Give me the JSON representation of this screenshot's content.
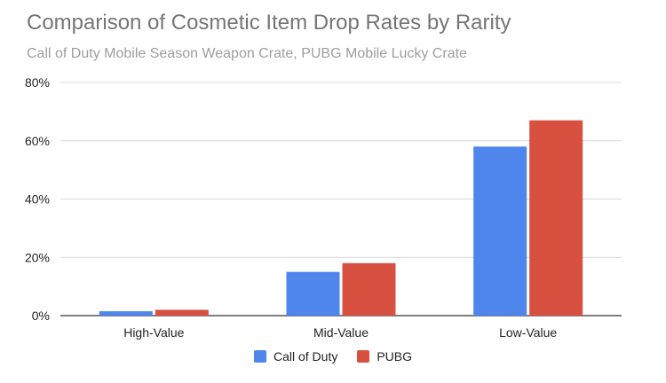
{
  "chart_data": {
    "type": "bar",
    "title": "Comparison of Cosmetic Item Drop Rates by Rarity",
    "subtitle": "Call of Duty Mobile Season Weapon Crate, PUBG Mobile Lucky Crate",
    "categories": [
      "High-Value",
      "Mid-Value",
      "Low-Value"
    ],
    "series": [
      {
        "name": "Call of Duty",
        "color": "#4F86EC",
        "values": [
          1.5,
          15,
          58
        ]
      },
      {
        "name": "PUBG",
        "color": "#D85040",
        "values": [
          2,
          18,
          67
        ]
      }
    ],
    "ylim": [
      0,
      80
    ],
    "yticks": [
      0,
      20,
      40,
      60,
      80
    ],
    "ytick_labels": [
      "0%",
      "20%",
      "40%",
      "60%",
      "80%"
    ],
    "grid": true,
    "legend_position": "bottom"
  }
}
